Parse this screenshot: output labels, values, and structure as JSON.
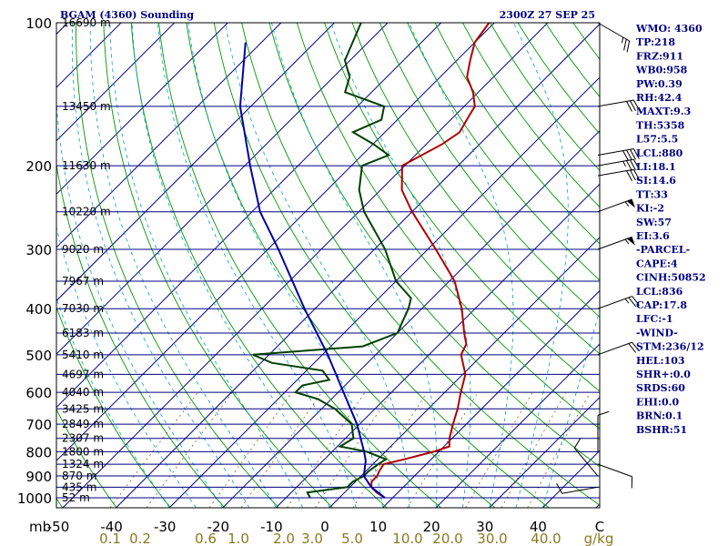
{
  "chart_data": {
    "type": "line",
    "diagram": "skew-T log-P",
    "title": "BGAM (4360) Sounding",
    "valid_time": "2300Z 27 SEP 25",
    "pressure_unit": "mb",
    "mixing_ratio_unit": "g/kg",
    "pressure_ticks": [
      100,
      200,
      300,
      400,
      500,
      600,
      700,
      800,
      900,
      1000
    ],
    "temperature_ticks": [
      -50,
      -40,
      -30,
      -20,
      -10,
      0,
      10,
      20,
      30,
      40
    ],
    "temperature_tick_labels": [
      "-50",
      "-40",
      "-30",
      "-20",
      "-10",
      "0",
      "10",
      "20",
      "30",
      "40"
    ],
    "mixing_ratio_labels": [
      "0.1",
      "0.2",
      "0.6",
      "1.0",
      "2.0",
      "3.0",
      "5.0",
      "10.0",
      "20.0",
      "30.0",
      "40.0"
    ],
    "mixing_ratio_values": [
      0.1,
      0.2,
      0.6,
      1.0,
      2.0,
      3.0,
      5.0,
      10.0,
      20.0,
      30.0,
      40.0
    ],
    "temperature_axis_unit": "C",
    "height_levels": [
      {
        "p": 100,
        "label": "16690 m"
      },
      {
        "p": 150,
        "label": "13450 m"
      },
      {
        "p": 200,
        "label": "11630 m"
      },
      {
        "p": 250,
        "label": "10220 m"
      },
      {
        "p": 300,
        "label": "9020 m"
      },
      {
        "p": 350,
        "label": "7967 m"
      },
      {
        "p": 400,
        "label": "7030 m"
      },
      {
        "p": 450,
        "label": "6183 m"
      },
      {
        "p": 500,
        "label": "5410 m"
      },
      {
        "p": 550,
        "label": "4697 m"
      },
      {
        "p": 600,
        "label": "4040 m"
      },
      {
        "p": 650,
        "label": "3425 m"
      },
      {
        "p": 700,
        "label": "2849 m"
      },
      {
        "p": 750,
        "label": "2307 m"
      },
      {
        "p": 800,
        "label": "1800 m"
      },
      {
        "p": 850,
        "label": "1324 m"
      },
      {
        "p": 900,
        "label": "870 m"
      },
      {
        "p": 950,
        "label": "435 m"
      },
      {
        "p": 1000,
        "label": "52 m"
      }
    ],
    "series": [
      {
        "name": "Temperature",
        "color": "#b00000",
        "points": [
          [
            1000,
            8.5
          ],
          [
            975,
            6.0
          ],
          [
            950,
            4.0
          ],
          [
            925,
            3.0
          ],
          [
            900,
            3.0
          ],
          [
            880,
            2.5
          ],
          [
            850,
            2.0
          ],
          [
            830,
            5.0
          ],
          [
            800,
            9.0
          ],
          [
            780,
            11.0
          ],
          [
            750,
            9.5
          ],
          [
            700,
            7.5
          ],
          [
            650,
            5.5
          ],
          [
            600,
            3.0
          ],
          [
            550,
            0.5
          ],
          [
            500,
            -4.0
          ],
          [
            475,
            -5.0
          ],
          [
            450,
            -7.5
          ],
          [
            400,
            -12.5
          ],
          [
            350,
            -19.0
          ],
          [
            300,
            -28.5
          ],
          [
            250,
            -40.0
          ],
          [
            225,
            -46.0
          ],
          [
            200,
            -50.5
          ],
          [
            180,
            -47.0
          ],
          [
            170,
            -46.0
          ],
          [
            160,
            -47.0
          ],
          [
            150,
            -48.0
          ],
          [
            140,
            -51.0
          ],
          [
            130,
            -55.0
          ],
          [
            120,
            -57.5
          ],
          [
            110,
            -60.0
          ],
          [
            100,
            -61.0
          ]
        ]
      },
      {
        "name": "Dewpoint",
        "color": "#004000",
        "points": [
          [
            1000,
            -5.5
          ],
          [
            975,
            -7.0
          ],
          [
            950,
            -0.5
          ],
          [
            925,
            -0.5
          ],
          [
            900,
            0.5
          ],
          [
            880,
            0.5
          ],
          [
            850,
            1.0
          ],
          [
            830,
            1.5
          ],
          [
            800,
            -3.5
          ],
          [
            780,
            -9.5
          ],
          [
            750,
            -8.5
          ],
          [
            700,
            -11.5
          ],
          [
            650,
            -17.5
          ],
          [
            620,
            -22.5
          ],
          [
            600,
            -28.0
          ],
          [
            580,
            -28.0
          ],
          [
            565,
            -24.0
          ],
          [
            540,
            -27.0
          ],
          [
            520,
            -38.0
          ],
          [
            500,
            -43.0
          ],
          [
            480,
            -24.0
          ],
          [
            450,
            -20.0
          ],
          [
            420,
            -21.5
          ],
          [
            400,
            -22.5
          ],
          [
            380,
            -24.0
          ],
          [
            350,
            -30.0
          ],
          [
            300,
            -38.0
          ],
          [
            250,
            -49.0
          ],
          [
            225,
            -54.0
          ],
          [
            200,
            -58.0
          ],
          [
            190,
            -55.0
          ],
          [
            180,
            -60.0
          ],
          [
            170,
            -66.0
          ],
          [
            160,
            -63.0
          ],
          [
            150,
            -65.0
          ],
          [
            140,
            -75.0
          ],
          [
            130,
            -77.0
          ],
          [
            120,
            -81.0
          ],
          [
            100,
            -85.0
          ]
        ]
      },
      {
        "name": "Parcel",
        "color": "#0000a0",
        "points": [
          [
            1000,
            8.5
          ],
          [
            950,
            4.0
          ],
          [
            900,
            0.5
          ],
          [
            836,
            -2.0
          ],
          [
            800,
            -4.0
          ],
          [
            700,
            -10.5
          ],
          [
            600,
            -19.0
          ],
          [
            500,
            -29.0
          ],
          [
            400,
            -42.0
          ],
          [
            300,
            -58.0
          ],
          [
            250,
            -68.5
          ],
          [
            200,
            -79.0
          ],
          [
            150,
            -92.0
          ],
          [
            110,
            -103.0
          ]
        ]
      }
    ],
    "winds": [
      {
        "p": 100,
        "dir": 300,
        "speed": 25
      },
      {
        "p": 150,
        "dir": 260,
        "speed": 30
      },
      {
        "p": 190,
        "dir": 260,
        "speed": 40
      },
      {
        "p": 200,
        "dir": 260,
        "speed": 35
      },
      {
        "p": 210,
        "dir": 260,
        "speed": 30
      },
      {
        "p": 250,
        "dir": 250,
        "speed": 55
      },
      {
        "p": 300,
        "dir": 250,
        "speed": 55
      },
      {
        "p": 400,
        "dir": 250,
        "speed": 25
      },
      {
        "p": 500,
        "dir": 250,
        "speed": 20
      },
      {
        "p": 800,
        "dir": 180,
        "speed": 10
      },
      {
        "p": 850,
        "dir": 290,
        "speed": 10
      },
      {
        "p": 900,
        "dir": 140,
        "speed": 10
      },
      {
        "p": 950,
        "dir": 80,
        "speed": 10
      }
    ],
    "indices": [
      "WMO: 4360",
      "TP:218",
      "FRZ:911",
      "WB0:958",
      "PW:0.39",
      "RH:42.4",
      "MAXT:9.3",
      "TH:5358",
      "L57:5.5",
      "LCL:880",
      "LI:18.1",
      "SI:14.6",
      "TT:33",
      "KI:-2",
      "SW:57",
      "EI:3.6",
      "-PARCEL-",
      "CAPE:4",
      "CINH:50852",
      "LCL:836",
      "CAP:17.8",
      "LFC:-1",
      "-WIND-",
      "STM:236/12",
      "HEL:103",
      "SHR+:0.0",
      "SRDS:60",
      "EHI:0.0",
      "BRN:0.1",
      "BSHR:51"
    ]
  }
}
